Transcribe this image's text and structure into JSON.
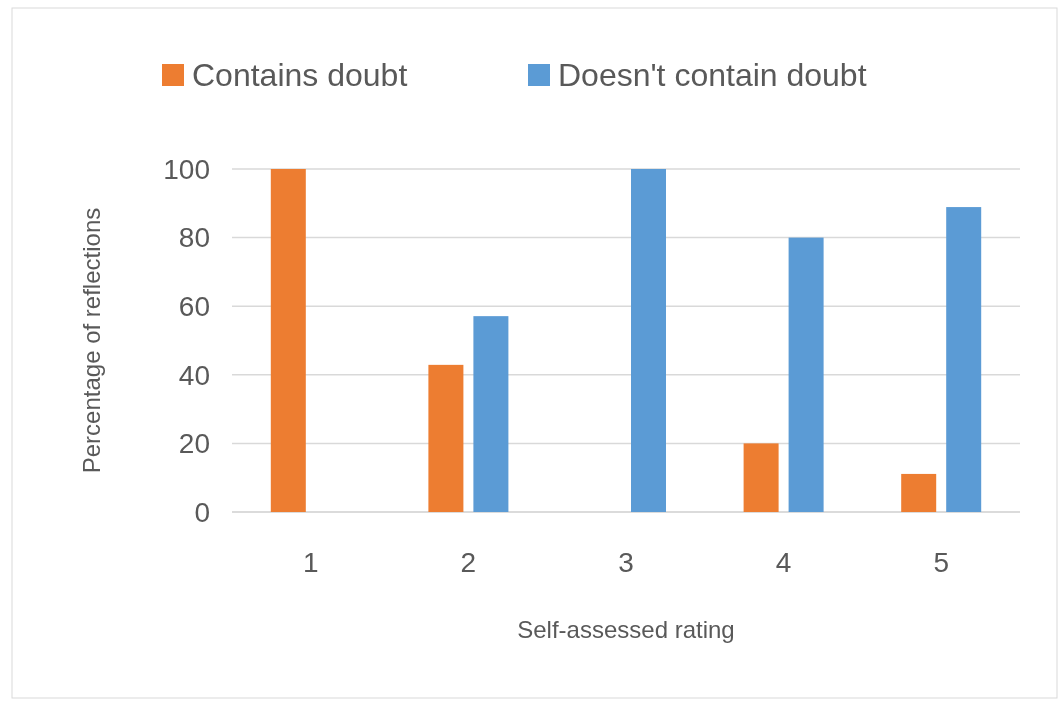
{
  "chart_data": {
    "type": "bar",
    "xlabel": "Self-assessed rating",
    "ylabel": "Percentage of reflections",
    "categories": [
      "1",
      "2",
      "3",
      "4",
      "5"
    ],
    "series": [
      {
        "name": "Contains doubt",
        "color": "#ed7d31",
        "values": [
          100,
          42.9,
          0,
          20,
          11.1
        ]
      },
      {
        "name": "Doesn't contain doubt",
        "color": "#5b9bd5",
        "values": [
          0,
          57.1,
          100,
          80,
          88.9
        ]
      }
    ],
    "ylim": [
      0,
      100
    ],
    "yticks": [
      0,
      20,
      40,
      60,
      80,
      100
    ],
    "grid": "y",
    "legend": "top"
  }
}
